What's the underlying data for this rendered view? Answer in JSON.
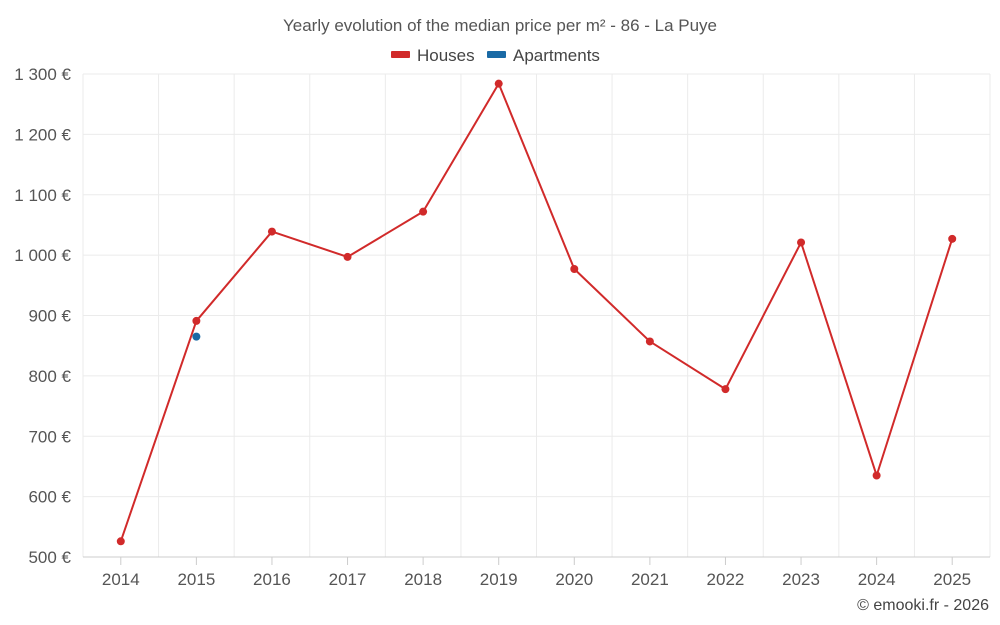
{
  "chart_data": {
    "type": "line",
    "title": "Yearly evolution of the median price per m² - 86 - La Puye",
    "x": [
      "2014",
      "2015",
      "2016",
      "2017",
      "2018",
      "2019",
      "2020",
      "2021",
      "2022",
      "2023",
      "2024",
      "2025"
    ],
    "series": [
      {
        "name": "Houses",
        "color": "#d12a2a",
        "values": [
          526,
          891,
          1039,
          997,
          1072,
          1284,
          977,
          857,
          778,
          1021,
          635,
          1027
        ]
      },
      {
        "name": "Apartments",
        "color": "#1a6aa5",
        "values": [
          null,
          865,
          null,
          null,
          null,
          null,
          null,
          null,
          null,
          null,
          null,
          null
        ]
      }
    ],
    "ylim": [
      500,
      1300
    ],
    "yticks": [
      500,
      600,
      700,
      800,
      900,
      1000,
      1100,
      1200,
      1300
    ],
    "ytick_labels": [
      "500 €",
      "600 €",
      "700 €",
      "800 €",
      "900 €",
      "1 000 €",
      "1 100 €",
      "1 200 €",
      "1 300 €"
    ],
    "grid": true,
    "legend_position": "top-center",
    "xlabel": "",
    "ylabel": ""
  },
  "credit": "© emooki.fr - 2026"
}
